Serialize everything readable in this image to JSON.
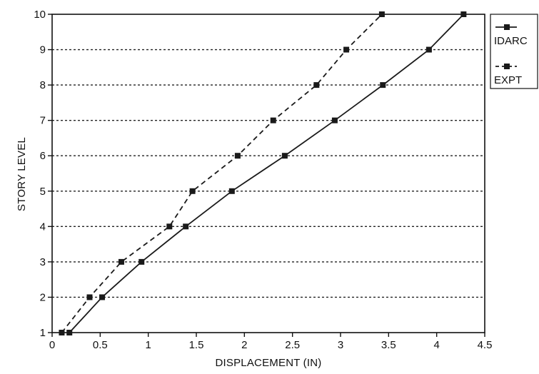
{
  "chart_data": {
    "type": "line",
    "title": "",
    "xlabel": "DISPLACEMENT (IN)",
    "ylabel": "STORY LEVEL",
    "xlim": [
      0,
      4.5
    ],
    "ylim": [
      1,
      10
    ],
    "x_ticks": [
      "0",
      "0.5",
      "1",
      "1.5",
      "2",
      "2.5",
      "3",
      "3.5",
      "4",
      "4.5"
    ],
    "y_ticks": [
      "1",
      "2",
      "3",
      "4",
      "5",
      "6",
      "7",
      "8",
      "9",
      "10"
    ],
    "grid": "horizontal dashed",
    "legend_position": "right",
    "series": [
      {
        "name": "IDARC",
        "style": "solid",
        "color": "#1a1a1a",
        "points": [
          {
            "x": 0.18,
            "y": 1
          },
          {
            "x": 0.52,
            "y": 2
          },
          {
            "x": 0.93,
            "y": 3
          },
          {
            "x": 1.39,
            "y": 4
          },
          {
            "x": 1.87,
            "y": 5
          },
          {
            "x": 2.42,
            "y": 6
          },
          {
            "x": 2.94,
            "y": 7
          },
          {
            "x": 3.44,
            "y": 8
          },
          {
            "x": 3.92,
            "y": 9
          },
          {
            "x": 4.28,
            "y": 10
          }
        ]
      },
      {
        "name": "EXPT",
        "style": "dashed",
        "color": "#1a1a1a",
        "points": [
          {
            "x": 0.1,
            "y": 1
          },
          {
            "x": 0.39,
            "y": 2
          },
          {
            "x": 0.72,
            "y": 3
          },
          {
            "x": 1.22,
            "y": 4
          },
          {
            "x": 1.46,
            "y": 5
          },
          {
            "x": 1.93,
            "y": 6
          },
          {
            "x": 2.3,
            "y": 7
          },
          {
            "x": 2.75,
            "y": 8
          },
          {
            "x": 3.06,
            "y": 9
          },
          {
            "x": 3.43,
            "y": 10
          }
        ]
      }
    ]
  }
}
